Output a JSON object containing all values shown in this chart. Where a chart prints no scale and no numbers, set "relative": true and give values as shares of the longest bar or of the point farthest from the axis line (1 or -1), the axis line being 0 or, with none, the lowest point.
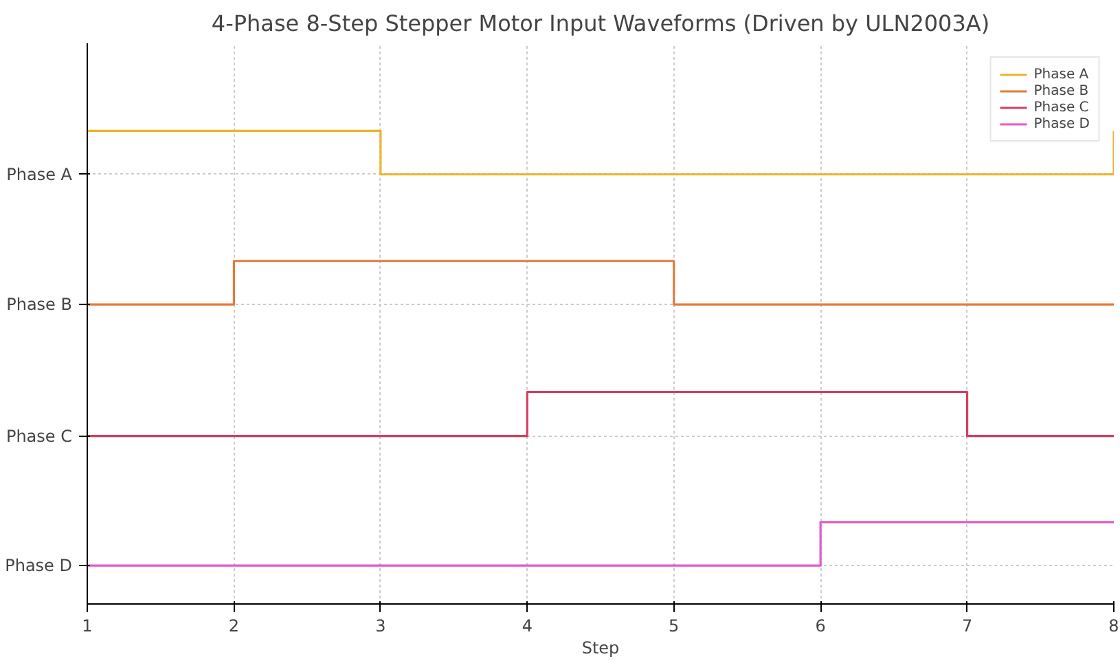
{
  "chart_data": {
    "type": "step",
    "title": "4-Phase 8-Step Stepper Motor Input Waveforms (Driven by ULN2003A)",
    "xlabel": "Step",
    "x": [
      1,
      2,
      3,
      4,
      5,
      6,
      7,
      8
    ],
    "relative": true,
    "series": [
      {
        "name": "Phase A",
        "color": "#eab530",
        "values": [
          1,
          1,
          0.908,
          0.908,
          0.908,
          0.908,
          0.908,
          1
        ]
      },
      {
        "name": "Phase B",
        "color": "#e27b3c",
        "values": [
          0.633,
          0.725,
          0.725,
          0.725,
          0.633,
          0.633,
          0.633,
          0.633
        ]
      },
      {
        "name": "Phase C",
        "color": "#d63f5e",
        "values": [
          0.355,
          0.355,
          0.355,
          0.448,
          0.448,
          0.448,
          0.355,
          0.355
        ]
      },
      {
        "name": "Phase D",
        "color": "#e25bc8",
        "values": [
          0.081,
          0.081,
          0.081,
          0.081,
          0.081,
          0.173,
          0.173,
          0.173
        ]
      }
    ],
    "annotations": [
      "Phase A",
      "Phase B",
      "Phase C",
      "Phase D"
    ],
    "xlim": [
      1,
      8
    ],
    "xticks": [
      1,
      2,
      3,
      4,
      5,
      6,
      7,
      8
    ],
    "grid": true,
    "legend": "top right",
    "line_style": "solid",
    "marker": "none"
  }
}
